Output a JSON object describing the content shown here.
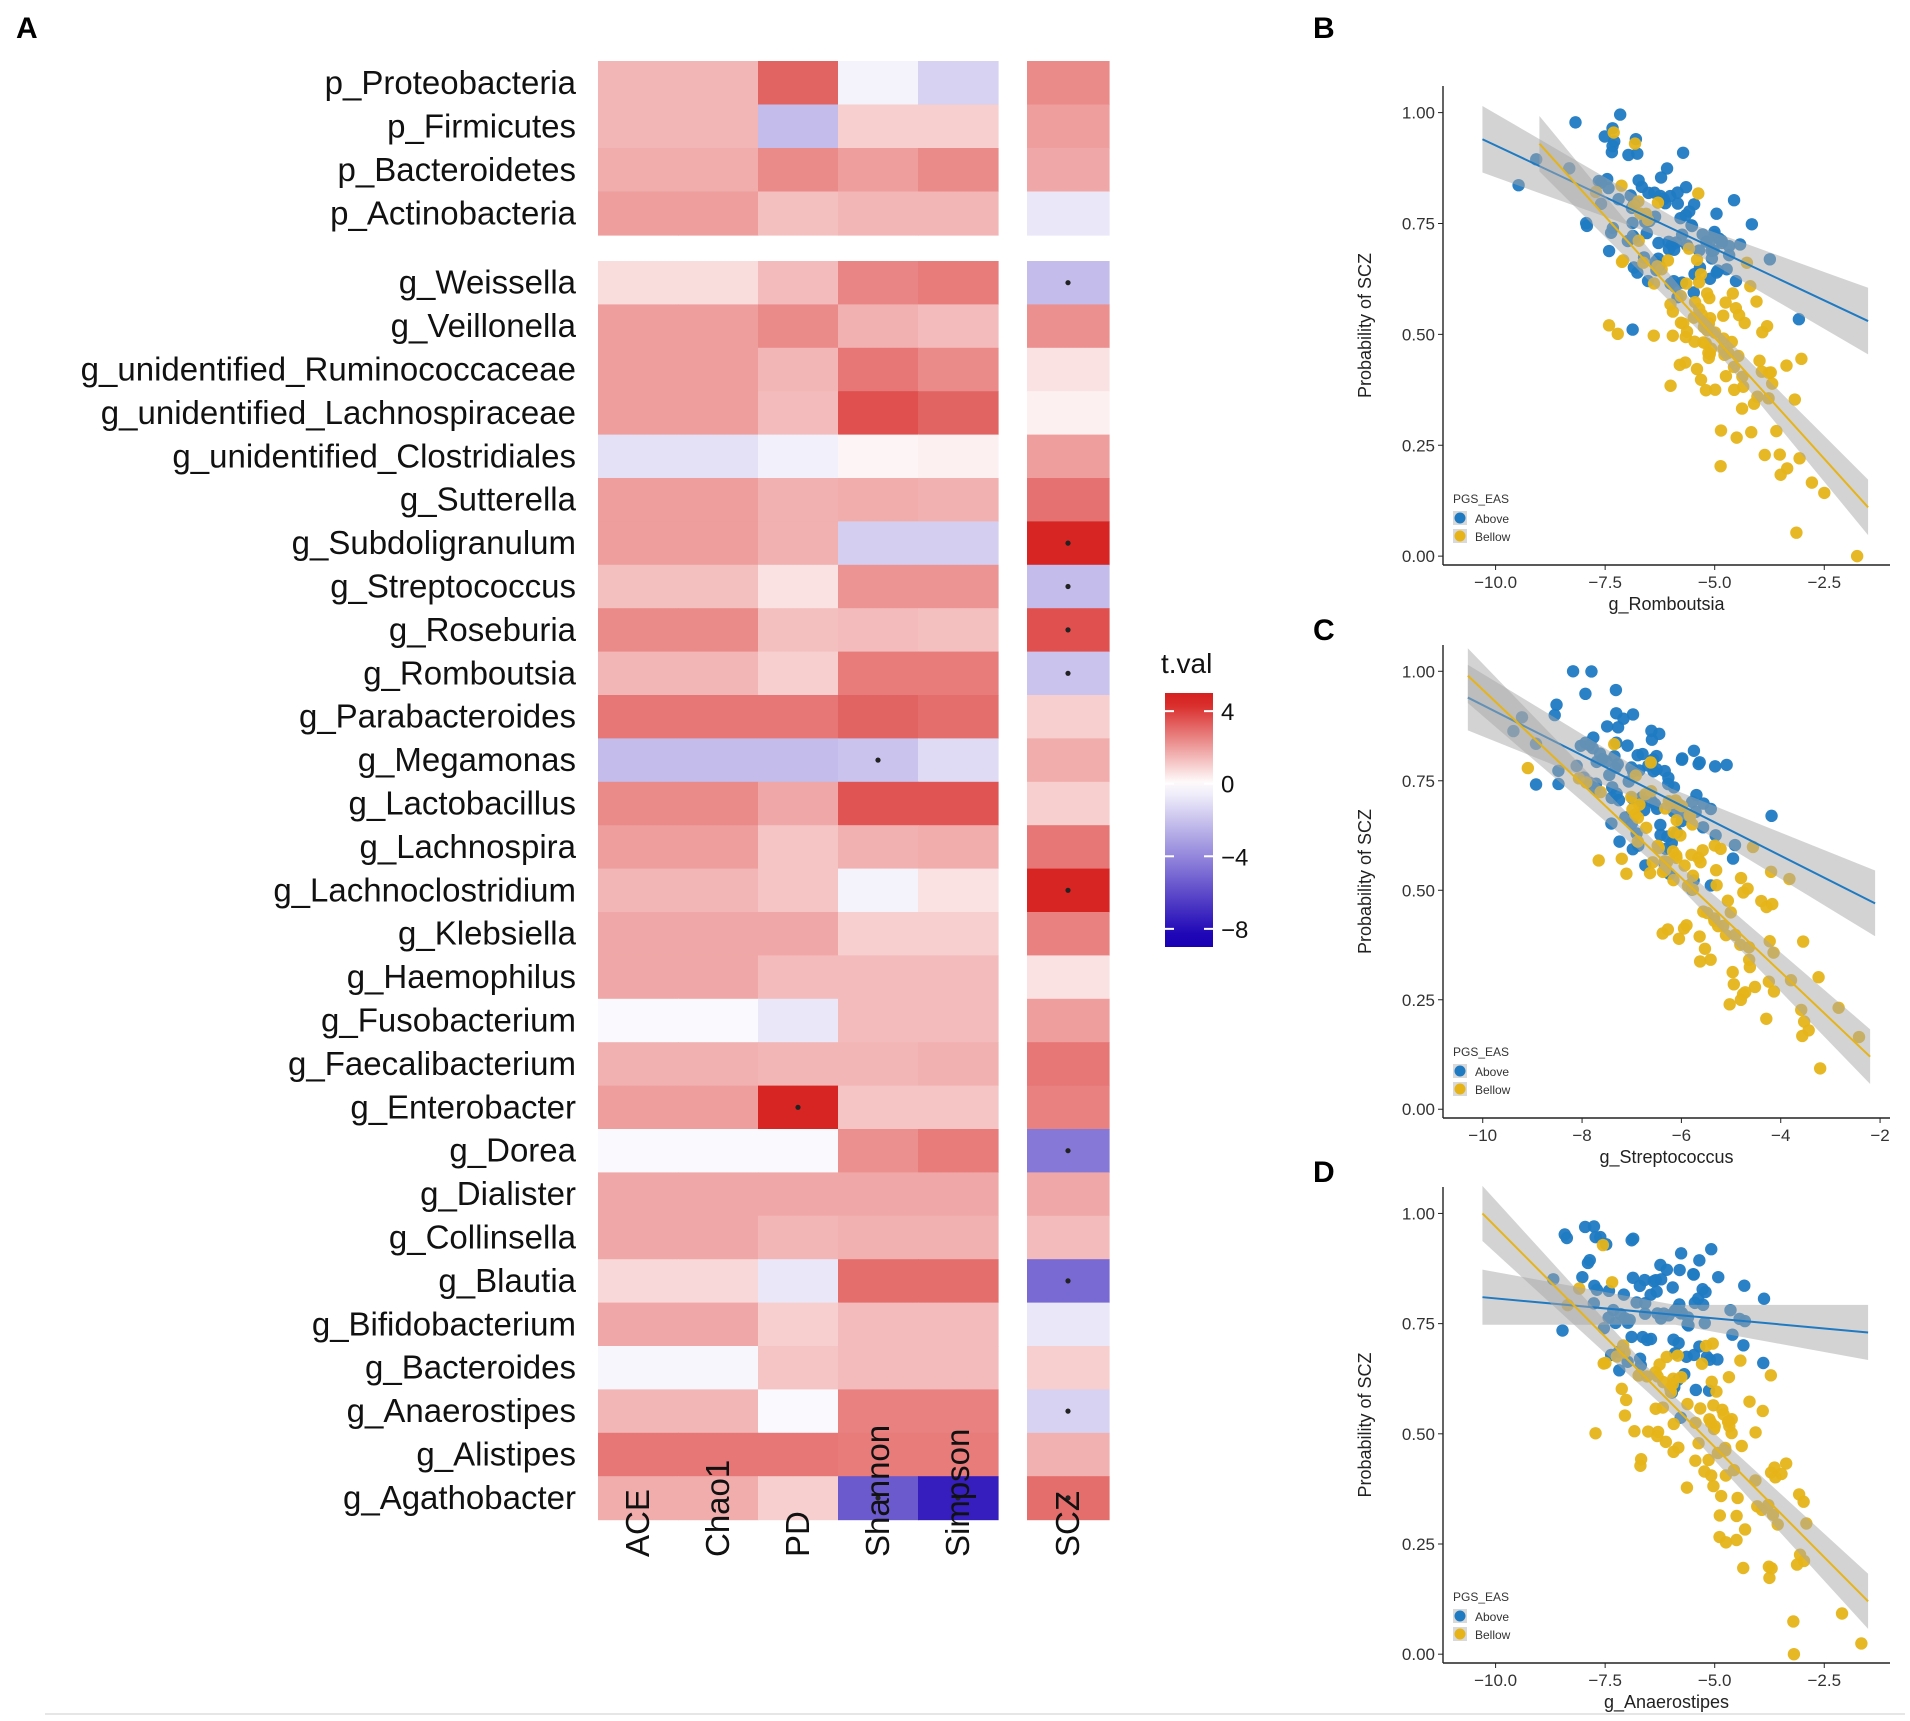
{
  "panel_labels": {
    "a": "A",
    "b": "B",
    "c": "C",
    "d": "D"
  },
  "chart_data": [
    {
      "type": "heatmap",
      "panel": "A",
      "columns": [
        "ACE",
        "Chao1",
        "PD",
        "Shannon",
        "Simpson",
        "SCZ"
      ],
      "rows": [
        "p_Proteobacteria",
        "p_Firmicutes",
        "p_Bacteroidetes",
        "p_Actinobacteria",
        "g_Weissella",
        "g_Veillonella",
        "g_unidentified_Ruminococcaceae",
        "g_unidentified_Lachnospiraceae",
        "g_unidentified_Clostridiales",
        "g_Sutterella",
        "g_Subdoligranulum",
        "g_Streptococcus",
        "g_Roseburia",
        "g_Romboutsia",
        "g_Parabacteroides",
        "g_Megamonas",
        "g_Lactobacillus",
        "g_Lachnospira",
        "g_Lachnoclostridium",
        "g_Klebsiella",
        "g_Haemophilus",
        "g_Fusobacterium",
        "g_Faecalibacterium",
        "g_Enterobacter",
        "g_Dorea",
        "g_Dialister",
        "g_Collinsella",
        "g_Blautia",
        "g_Bifidobacterium",
        "g_Bacteroides",
        "g_Anaerostipes",
        "g_Alistipes",
        "g_Agathobacter"
      ],
      "values": [
        [
          1.5,
          1.5,
          3.2,
          -0.4,
          -1.5,
          2.4
        ],
        [
          1.5,
          1.5,
          -2.2,
          1.0,
          1.0,
          2.0
        ],
        [
          1.7,
          1.7,
          2.4,
          2.0,
          2.4,
          1.8
        ],
        [
          2.0,
          2.0,
          1.3,
          1.5,
          1.5,
          -0.8
        ],
        [
          0.7,
          0.7,
          1.4,
          2.5,
          2.7,
          -2.2
        ],
        [
          2.0,
          2.0,
          2.4,
          1.6,
          1.4,
          2.3
        ],
        [
          2.0,
          2.0,
          1.5,
          2.8,
          2.4,
          0.6
        ],
        [
          2.0,
          2.0,
          1.4,
          3.6,
          3.2,
          0.3
        ],
        [
          -1.0,
          -1.0,
          -0.5,
          0.2,
          0.3,
          2.0
        ],
        [
          2.0,
          2.0,
          1.6,
          1.7,
          1.6,
          2.9
        ],
        [
          2.0,
          2.0,
          1.6,
          -1.6,
          -1.6,
          4.5
        ],
        [
          1.3,
          1.3,
          0.6,
          2.2,
          2.2,
          -2.2
        ],
        [
          2.4,
          2.4,
          1.3,
          1.4,
          1.3,
          3.6
        ],
        [
          1.5,
          1.5,
          1.0,
          2.7,
          2.7,
          -2.0
        ],
        [
          2.8,
          2.8,
          2.8,
          3.2,
          3.0,
          1.0
        ],
        [
          -2.2,
          -2.2,
          -2.2,
          -2.0,
          -1.2,
          1.7
        ],
        [
          2.4,
          2.4,
          1.8,
          3.5,
          3.5,
          1.0
        ],
        [
          2.0,
          2.0,
          1.2,
          1.6,
          1.7,
          2.8
        ],
        [
          1.5,
          1.5,
          1.2,
          -0.4,
          0.6,
          4.5
        ],
        [
          1.8,
          1.8,
          1.8,
          1.0,
          1.0,
          2.6
        ],
        [
          1.8,
          1.8,
          1.4,
          1.4,
          1.4,
          0.6
        ],
        [
          -0.2,
          -0.2,
          -0.8,
          1.4,
          1.4,
          2.0
        ],
        [
          1.6,
          1.6,
          1.5,
          1.5,
          1.6,
          2.8
        ],
        [
          2.0,
          2.0,
          4.5,
          1.2,
          1.2,
          2.6
        ],
        [
          -0.2,
          -0.2,
          -0.2,
          2.3,
          2.7,
          -4.5
        ],
        [
          1.8,
          1.8,
          1.8,
          1.8,
          1.8,
          1.8
        ],
        [
          1.8,
          1.8,
          1.5,
          1.6,
          1.6,
          1.4
        ],
        [
          0.8,
          0.8,
          -0.8,
          3.0,
          3.0,
          -5.0
        ],
        [
          1.8,
          1.8,
          1.0,
          1.4,
          1.4,
          -0.8
        ],
        [
          -0.3,
          -0.3,
          1.2,
          1.4,
          1.4,
          1.0
        ],
        [
          1.5,
          1.5,
          -0.2,
          2.6,
          2.6,
          -1.5
        ],
        [
          2.8,
          2.8,
          2.8,
          2.7,
          2.7,
          1.6
        ],
        [
          1.7,
          1.7,
          1.0,
          -5.5,
          -7.5,
          3.0
        ]
      ],
      "significant": [
        [
          4,
          5
        ],
        [
          10,
          5
        ],
        [
          11,
          5
        ],
        [
          12,
          5
        ],
        [
          13,
          5
        ],
        [
          15,
          3
        ],
        [
          18,
          5
        ],
        [
          23,
          2
        ],
        [
          24,
          5
        ],
        [
          27,
          5
        ],
        [
          30,
          5
        ],
        [
          32,
          3
        ],
        [
          32,
          4
        ],
        [
          32,
          5
        ]
      ],
      "colorbar": {
        "title": "t.val",
        "ticks": [
          "4",
          "0",
          "−4",
          "−8"
        ],
        "tick_values": [
          4,
          0,
          -4,
          -8
        ],
        "range": [
          -9,
          5
        ],
        "low_color": "#1a00b4",
        "mid_color": "#ffffff",
        "high_color": "#d6201e"
      }
    },
    {
      "type": "scatter",
      "panel": "B",
      "xlabel": "g_Romboutsia",
      "ylabel": "Probability of SCZ",
      "xlim": [
        -11.2,
        -1.0
      ],
      "ylim": [
        -0.02,
        1.06
      ],
      "x_ticks": [
        -10.0,
        -7.5,
        -5.0,
        -2.5
      ],
      "x_tick_labels": [
        "−10.0",
        "−7.5",
        "−5.0",
        "−2.5"
      ],
      "y_ticks": [
        0.0,
        0.25,
        0.5,
        0.75,
        1.0
      ],
      "y_tick_labels": [
        "0.00",
        "0.25",
        "0.50",
        "0.75",
        "1.00"
      ],
      "legend_title": "PGS_EAS",
      "legend_labels": [
        "Above",
        "Bellow"
      ],
      "series": [
        {
          "name": "Above",
          "color": "#1f7ac2",
          "fit": {
            "x0": -10.3,
            "y0": 0.94,
            "x1": -1.5,
            "y1": 0.53
          },
          "band": 0.06,
          "seed": 11,
          "n": 105,
          "x_center": -6.2,
          "x_spread": 2.2,
          "y_noise": 0.14
        },
        {
          "name": "Bellow",
          "color": "#e6b419",
          "fit": {
            "x0": -9.0,
            "y0": 0.93,
            "x1": -1.5,
            "y1": 0.11
          },
          "band": 0.05,
          "seed": 23,
          "n": 110,
          "x_center": -5.0,
          "x_spread": 2.4,
          "y_noise": 0.16
        }
      ]
    },
    {
      "type": "scatter",
      "panel": "C",
      "xlabel": "g_Streptococcus",
      "ylabel": "Probability of SCZ",
      "xlim": [
        -10.8,
        -1.8
      ],
      "ylim": [
        -0.02,
        1.06
      ],
      "x_ticks": [
        -10,
        -8,
        -6,
        -4,
        -2
      ],
      "x_tick_labels": [
        "−10",
        "−8",
        "−6",
        "−4",
        "−2"
      ],
      "y_ticks": [
        0.0,
        0.25,
        0.5,
        0.75,
        1.0
      ],
      "y_tick_labels": [
        "0.00",
        "0.25",
        "0.50",
        "0.75",
        "1.00"
      ],
      "legend_title": "PGS_EAS",
      "legend_labels": [
        "Above",
        "Bellow"
      ],
      "series": [
        {
          "name": "Above",
          "color": "#1f7ac2",
          "fit": {
            "x0": -10.3,
            "y0": 0.94,
            "x1": -2.1,
            "y1": 0.47
          },
          "band": 0.06,
          "seed": 37,
          "n": 105,
          "x_center": -6.8,
          "x_spread": 1.9,
          "y_noise": 0.13
        },
        {
          "name": "Bellow",
          "color": "#e6b419",
          "fit": {
            "x0": -10.3,
            "y0": 0.99,
            "x1": -2.2,
            "y1": 0.12
          },
          "band": 0.05,
          "seed": 41,
          "n": 110,
          "x_center": -5.6,
          "x_spread": 2.2,
          "y_noise": 0.16
        }
      ]
    },
    {
      "type": "scatter",
      "panel": "D",
      "xlabel": "g_Anaerostipes",
      "ylabel": "Probability of SCZ",
      "xlim": [
        -11.2,
        -1.0
      ],
      "ylim": [
        -0.02,
        1.06
      ],
      "x_ticks": [
        -10.0,
        -7.5,
        -5.0,
        -2.5
      ],
      "x_tick_labels": [
        "−10.0",
        "−7.5",
        "−5.0",
        "−2.5"
      ],
      "y_ticks": [
        0.0,
        0.25,
        0.5,
        0.75,
        1.0
      ],
      "y_tick_labels": [
        "0.00",
        "0.25",
        "0.50",
        "0.75",
        "1.00"
      ],
      "legend_title": "PGS_EAS",
      "legend_labels": [
        "Above",
        "Bellow"
      ],
      "series": [
        {
          "name": "Above",
          "color": "#1f7ac2",
          "fit": {
            "x0": -10.3,
            "y0": 0.81,
            "x1": -1.5,
            "y1": 0.73
          },
          "band": 0.05,
          "seed": 53,
          "n": 100,
          "x_center": -6.2,
          "x_spread": 2.1,
          "y_noise": 0.12
        },
        {
          "name": "Bellow",
          "color": "#e6b419",
          "fit": {
            "x0": -10.3,
            "y0": 1.0,
            "x1": -1.5,
            "y1": 0.12
          },
          "band": 0.05,
          "seed": 67,
          "n": 110,
          "x_center": -5.0,
          "x_spread": 2.3,
          "y_noise": 0.16
        }
      ]
    }
  ]
}
